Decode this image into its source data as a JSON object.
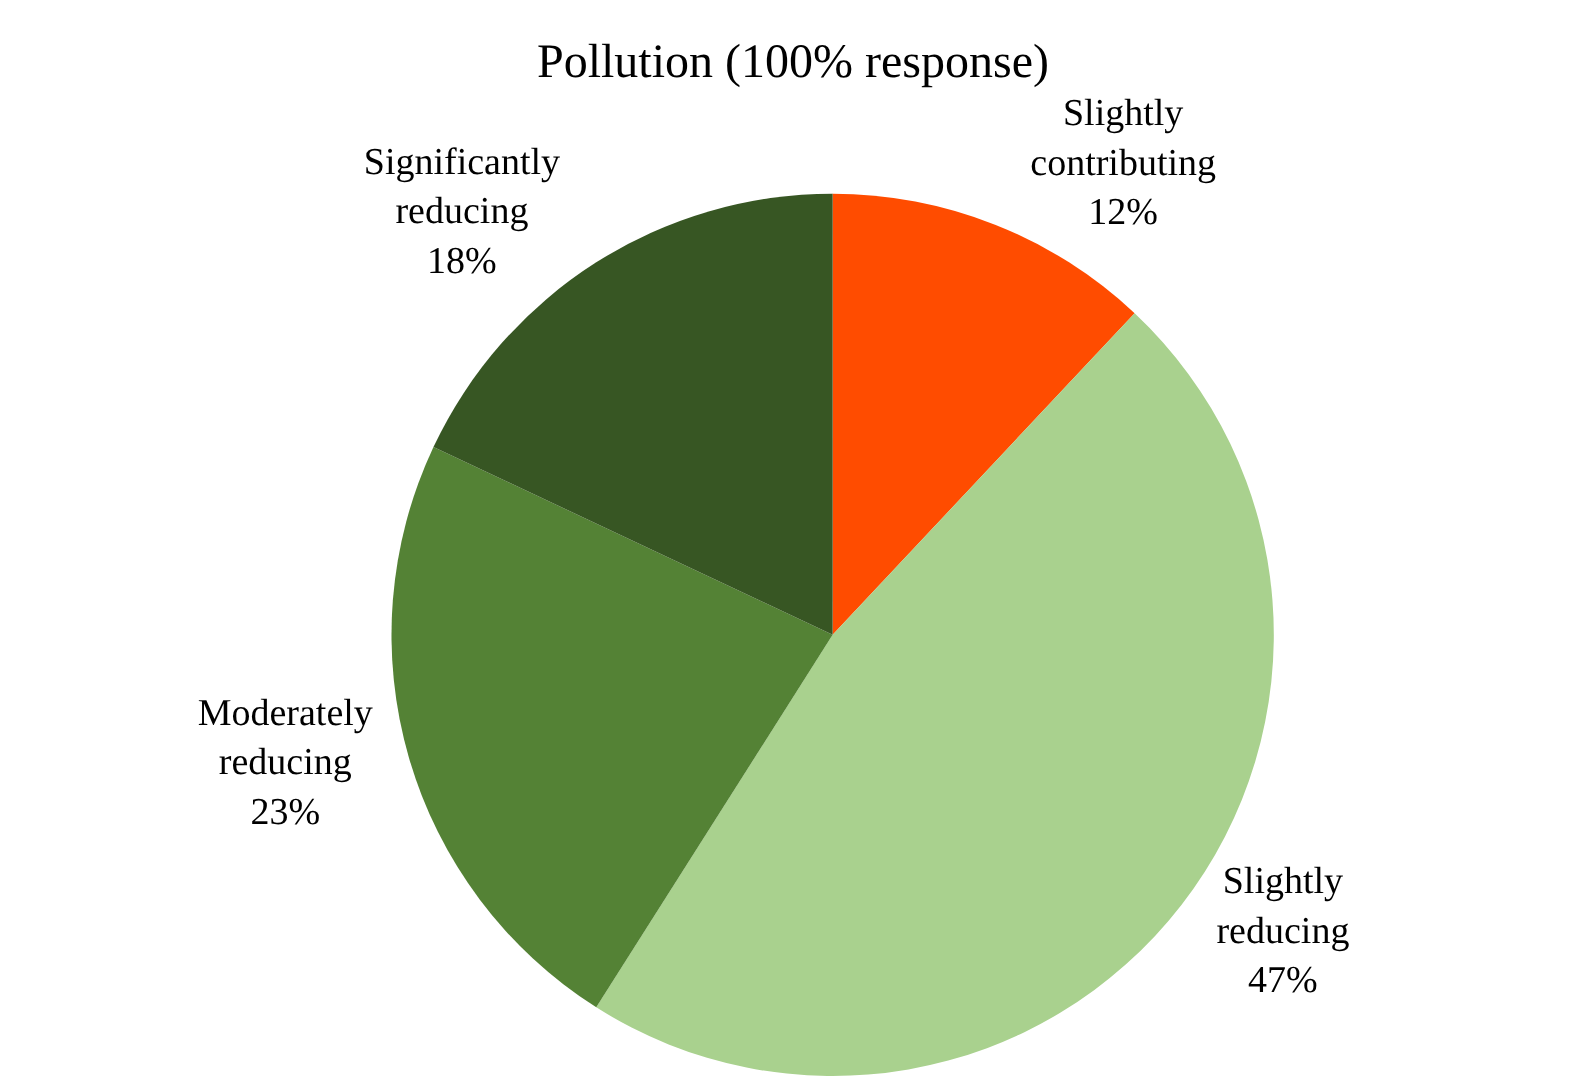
{
  "chart_data": {
    "type": "pie",
    "title": "Pollution (100% response)",
    "categories": [
      "Slightly contributing",
      "Slightly reducing",
      "Moderately reducing",
      "Significantly reducing"
    ],
    "values": [
      12,
      47,
      23,
      18
    ],
    "colors": [
      "#ff4c00",
      "#a9d18e",
      "#548235",
      "#375623"
    ],
    "value_labels": [
      "12%",
      "47%",
      "23%",
      "18%"
    ],
    "legend": false
  }
}
